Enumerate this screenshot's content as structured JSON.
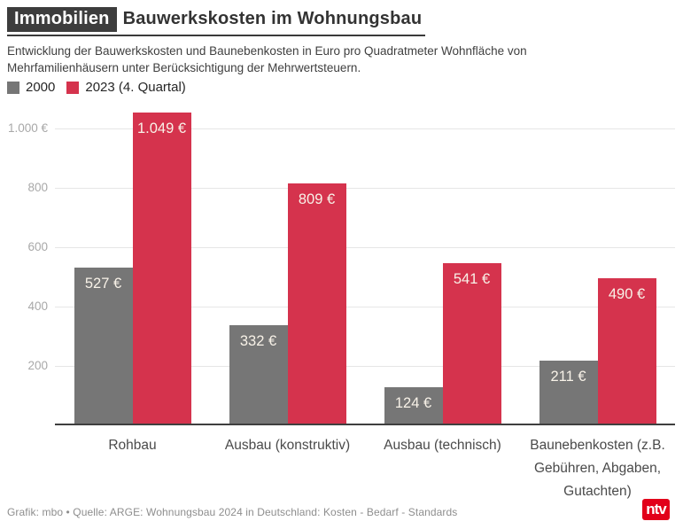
{
  "header": {
    "kicker": "Immobilien",
    "title": "Bauwerkskosten im Wohnungsbau",
    "subtitle": "Entwicklung der Bauwerkskosten und Baunebenkosten in Euro pro Quadratmeter Wohnfläche von Mehrfamilienhäusern unter Berücksichtigung der Mehrwertsteuern."
  },
  "legend": {
    "items": [
      {
        "label": "2000",
        "color": "#767676"
      },
      {
        "label": "2023 (4. Quartal)",
        "color": "#d5334d"
      }
    ]
  },
  "chart_data": {
    "type": "bar",
    "title": "Bauwerkskosten im Wohnungsbau",
    "xlabel": "",
    "ylabel": "",
    "categories": [
      "Rohbau",
      "Ausbau (konstruktiv)",
      "Ausbau (technisch)",
      "Baunebenkosten (z.B. Gebühren, Abgaben, Gutachten)"
    ],
    "series": [
      {
        "name": "2000",
        "color": "#767676",
        "values": [
          527,
          332,
          124,
          211
        ],
        "labels": [
          "527 €",
          "332 €",
          "124 €",
          "211 €"
        ]
      },
      {
        "name": "2023 (4. Quartal)",
        "color": "#d5334d",
        "values": [
          1049,
          809,
          541,
          490
        ],
        "labels": [
          "1.049 €",
          "809 €",
          "541 €",
          "490 €"
        ]
      }
    ],
    "ylim": [
      0,
      1100
    ],
    "yticks": [
      {
        "value": 200,
        "label": "200"
      },
      {
        "value": 400,
        "label": "400"
      },
      {
        "value": 600,
        "label": "600"
      },
      {
        "value": 800,
        "label": "800"
      },
      {
        "value": 1000,
        "label": "1.000 €"
      }
    ],
    "grid": true,
    "legend_position": "top-left"
  },
  "footer": {
    "credit": "Grafik: mbo • Quelle: ARGE: Wohnungsbau 2024 in Deutschland: Kosten - Bedarf - Standards",
    "logo_text": "ntv",
    "logo_color": "#e2001a"
  },
  "colors": {
    "bar_gray": "#767676",
    "bar_red": "#d5334d",
    "gridline": "#e6e6e6",
    "axis_line": "#3f3f3f",
    "ytick_text": "#a8a8a8",
    "xtick_text": "#4a4a4a",
    "value_label_text": "#f8f2e8",
    "kicker_bg": "#3d3d3d"
  }
}
